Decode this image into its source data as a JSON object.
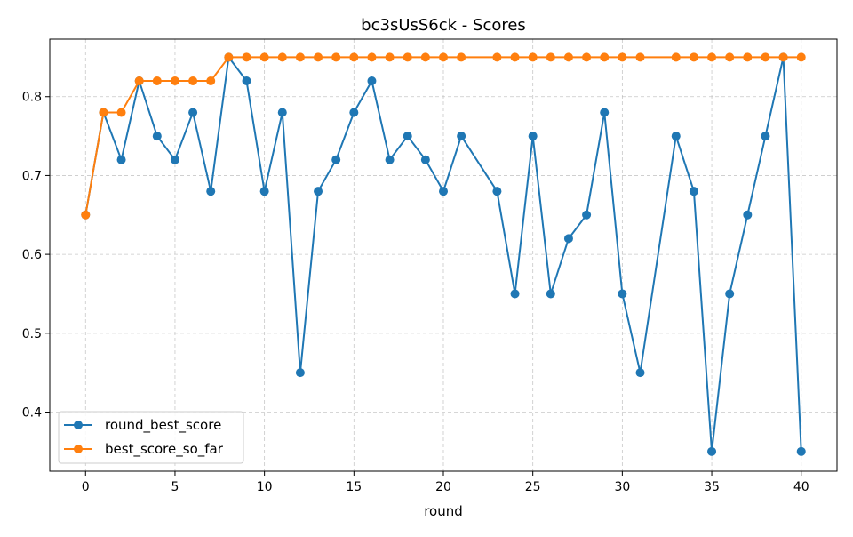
{
  "chart_data": {
    "type": "line",
    "title": "bc3sUsS6ck - Scores",
    "xlabel": "round",
    "ylabel": "",
    "xlim": [
      -2,
      42
    ],
    "ylim": [
      0.325,
      0.873
    ],
    "xticks": [
      0,
      5,
      10,
      15,
      20,
      25,
      30,
      35,
      40
    ],
    "yticks": [
      0.4,
      0.5,
      0.6,
      0.7,
      0.8
    ],
    "grid": true,
    "legend_position": "lower-left",
    "series": [
      {
        "name": "round_best_score",
        "color": "#1f77b4",
        "x": [
          0,
          1,
          2,
          3,
          4,
          5,
          6,
          7,
          8,
          9,
          10,
          11,
          12,
          13,
          14,
          15,
          16,
          17,
          18,
          19,
          20,
          21,
          23,
          24,
          25,
          26,
          27,
          28,
          29,
          30,
          31,
          33,
          34,
          35,
          36,
          37,
          38,
          39,
          40
        ],
        "values": [
          0.65,
          0.78,
          0.72,
          0.82,
          0.75,
          0.72,
          0.78,
          0.68,
          0.85,
          0.82,
          0.68,
          0.78,
          0.45,
          0.68,
          0.72,
          0.78,
          0.82,
          0.72,
          0.75,
          0.72,
          0.68,
          0.75,
          0.68,
          0.55,
          0.75,
          0.55,
          0.62,
          0.65,
          0.78,
          0.55,
          0.45,
          0.75,
          0.68,
          0.35,
          0.55,
          0.65,
          0.75,
          0.85,
          0.35
        ]
      },
      {
        "name": "best_score_so_far",
        "color": "#ff7f0e",
        "x": [
          0,
          1,
          2,
          3,
          4,
          5,
          6,
          7,
          8,
          9,
          10,
          11,
          12,
          13,
          14,
          15,
          16,
          17,
          18,
          19,
          20,
          21,
          23,
          24,
          25,
          26,
          27,
          28,
          29,
          30,
          31,
          33,
          34,
          35,
          36,
          37,
          38,
          39,
          40
        ],
        "values": [
          0.65,
          0.78,
          0.78,
          0.82,
          0.82,
          0.82,
          0.82,
          0.82,
          0.85,
          0.85,
          0.85,
          0.85,
          0.85,
          0.85,
          0.85,
          0.85,
          0.85,
          0.85,
          0.85,
          0.85,
          0.85,
          0.85,
          0.85,
          0.85,
          0.85,
          0.85,
          0.85,
          0.85,
          0.85,
          0.85,
          0.85,
          0.85,
          0.85,
          0.85,
          0.85,
          0.85,
          0.85,
          0.85,
          0.85
        ]
      }
    ]
  }
}
